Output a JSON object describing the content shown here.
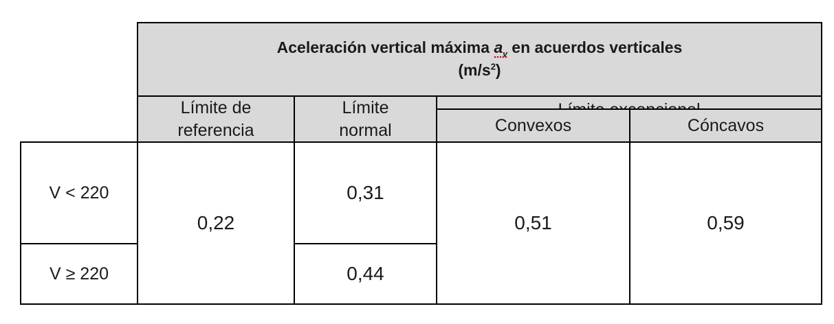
{
  "table": {
    "header_title_line1_pre": "Aceleración vertical máxima ",
    "header_title_symbol": "a",
    "header_title_symbol_sub": "v",
    "header_title_line1_post": " en acuerdos verticales",
    "header_title_unit_open": "(m/s",
    "header_title_unit_sup": "2",
    "header_title_unit_close": ")",
    "col_reference_line1": "Límite de",
    "col_reference_line2": "referencia",
    "col_normal_line1": "Límite",
    "col_normal_line2": "normal",
    "col_exceptional": "Límite excepcional",
    "col_convex": "Convexos",
    "col_concave": "Cóncavos",
    "rows": [
      {
        "label": "V < 220",
        "normal": "0,31"
      },
      {
        "label": "V ≥ 220",
        "normal": "0,44"
      }
    ],
    "reference_value": "0,22",
    "convex_value": "0,51",
    "concave_value": "0,59"
  }
}
